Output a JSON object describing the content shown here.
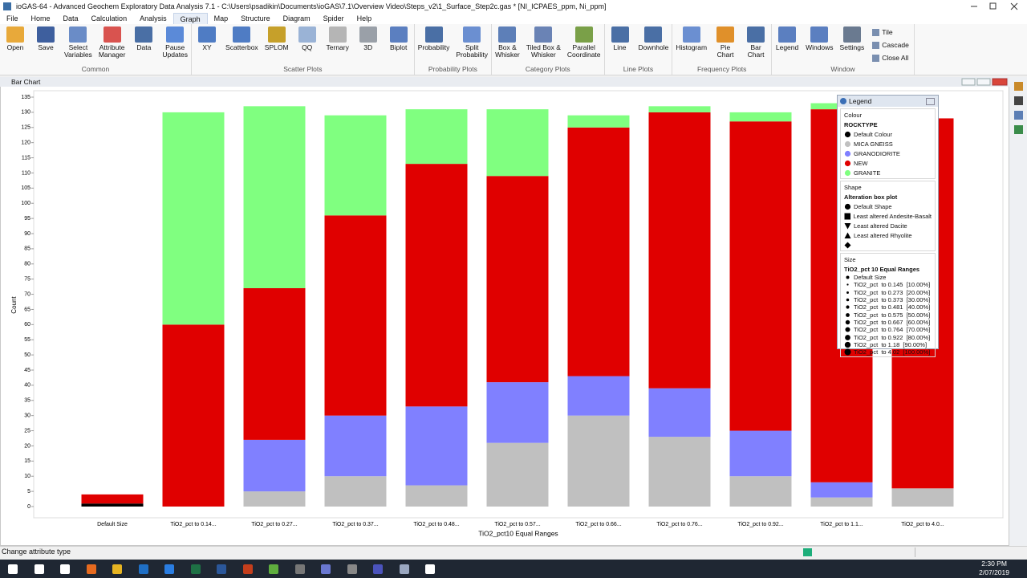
{
  "app": {
    "title": "ioGAS-64 - Advanced Geochem Exploratory Data Analysis 7.1 - C:\\Users\\psadikin\\Documents\\ioGAS\\7.1\\Overview Video\\Steps_v2\\1_Surface_Step2c.gas * [NI_ICPAES_ppm, Ni_ppm]",
    "menu": [
      "File",
      "Home",
      "Data",
      "Calculation",
      "Analysis",
      "Graph",
      "Map",
      "Structure",
      "Diagram",
      "Spider",
      "Help"
    ],
    "selected_menu": "Graph"
  },
  "ribbon": {
    "groups": [
      {
        "name": "Common",
        "buttons": [
          "Open",
          "Save",
          "Select\nVariables",
          "Attribute\nManager",
          "Data",
          "Pause\nUpdates"
        ]
      },
      {
        "name": "Scatter Plots",
        "buttons": [
          "XY",
          "Scatterbox",
          "SPLOM",
          "QQ",
          "Ternary",
          "3D",
          "Biplot"
        ]
      },
      {
        "name": "Probability Plots",
        "buttons": [
          "Probability",
          "Split\nProbability"
        ]
      },
      {
        "name": "Category Plots",
        "buttons": [
          "Box &\nWhisker",
          "Tiled Box &\nWhisker",
          "Parallel\nCoordinate"
        ]
      },
      {
        "name": "Line Plots",
        "buttons": [
          "Line",
          "Downhole"
        ]
      },
      {
        "name": "Frequency Plots",
        "buttons": [
          "Histogram",
          "Pie\nChart",
          "Bar\nChart"
        ]
      },
      {
        "name": "Window",
        "buttons": [
          "Legend",
          "Windows",
          "Settings"
        ],
        "small_buttons": [
          "Tile",
          "Cascade",
          "Close All"
        ]
      }
    ]
  },
  "chart_window": {
    "title": "Bar Chart"
  },
  "chart_data": {
    "type": "bar",
    "stacked": true,
    "x_label": "TiO2_pct10 Equal Ranges",
    "y_label": "Count",
    "categories": [
      "Default Size",
      "TiO2_pct to 0.14...",
      "TiO2_pct to 0.27...",
      "TiO2_pct to 0.37...",
      "TiO2_pct to 0.48...",
      "TiO2_pct to 0.57...",
      "TiO2_pct to 0.66...",
      "TiO2_pct to 0.76...",
      "TiO2_pct to 0.92...",
      "TiO2_pct to 1.1...",
      "TiO2_pct to 4.0..."
    ],
    "series": [
      {
        "name": "Default Colour",
        "color": "#000000",
        "values": [
          1,
          0,
          0,
          0,
          0,
          0,
          0,
          0,
          0,
          0,
          0
        ]
      },
      {
        "name": "MICA GNEISS",
        "color": "#c0c0c0",
        "values": [
          0,
          0,
          5,
          10,
          7,
          21,
          30,
          23,
          10,
          3,
          6
        ]
      },
      {
        "name": "GRANODIORITE",
        "color": "#8080ff",
        "values": [
          0,
          0,
          17,
          20,
          26,
          20,
          13,
          16,
          15,
          5,
          0
        ]
      },
      {
        "name": "NEW",
        "color": "#e00000",
        "values": [
          3,
          60,
          50,
          66,
          80,
          68,
          82,
          91,
          102,
          123,
          122
        ]
      },
      {
        "name": "GRANITE",
        "color": "#80ff80",
        "values": [
          0,
          70,
          60,
          33,
          18,
          22,
          4,
          2,
          3,
          2,
          0
        ]
      }
    ],
    "ylim": [
      0,
      135
    ],
    "yticks": [
      0,
      5,
      10,
      15,
      20,
      25,
      30,
      35,
      40,
      45,
      50,
      55,
      60,
      65,
      70,
      75,
      80,
      85,
      90,
      95,
      100,
      105,
      110,
      115,
      120,
      125,
      130,
      135
    ],
    "grid": false
  },
  "legend": {
    "title": "Legend",
    "colour": {
      "heading": "Colour",
      "field": "ROCKTYPE"
    },
    "shape": {
      "heading": "Shape",
      "field": "Alteration box plot",
      "items": [
        "Default Shape",
        "Least altered Andesite-Basalt",
        "Least altered Dacite",
        "Least altered Rhyolite"
      ]
    },
    "size": {
      "heading": "Size",
      "field": "TiO2_pct 10 Equal Ranges",
      "items": [
        "Default Size",
        "TiO2_pct  to 0.145  [10.00%]",
        "TiO2_pct  to 0.273  [20.00%]",
        "TiO2_pct  to 0.373  [30.00%]",
        "TiO2_pct  to 0.481  [40.00%]",
        "TiO2_pct  to 0.575  [50.00%]",
        "TiO2_pct  to 0.667  [60.00%]",
        "TiO2_pct  to 0.764  [70.00%]",
        "TiO2_pct  to 0.922  [80.00%]",
        "TiO2_pct  to 1.18  [90.00%]",
        "TiO2_pct  to 4.02  [100.00%]"
      ]
    }
  },
  "status_bar": {
    "text": "Change attribute type"
  },
  "taskbar": {
    "time": "2:30 PM",
    "date": "2/07/2019"
  }
}
